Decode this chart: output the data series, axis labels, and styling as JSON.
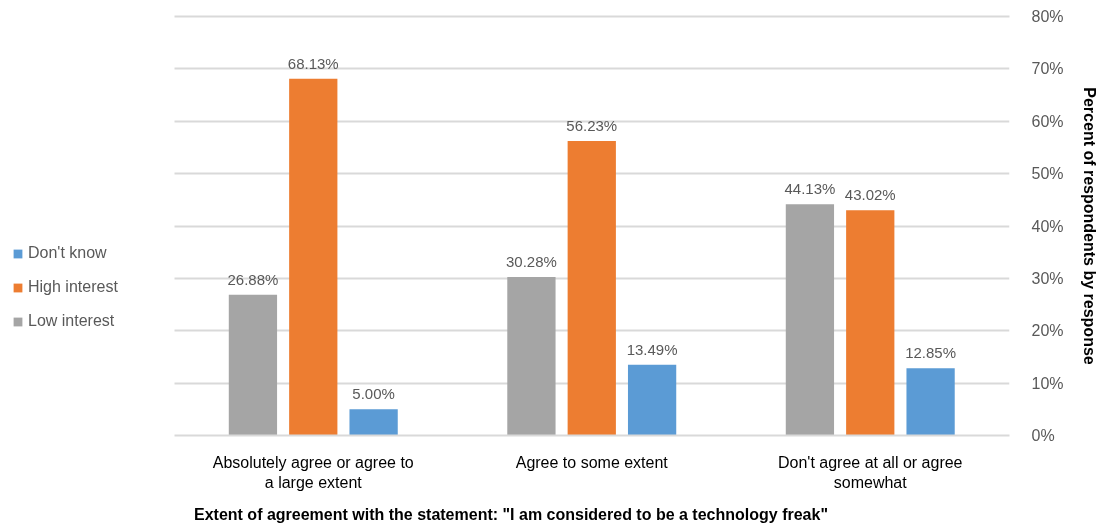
{
  "chart_data": {
    "type": "bar",
    "categories": [
      "Absolutely agree or agree to a large extent",
      "Agree to some extent",
      "Don't agree at all or agree somewhat"
    ],
    "series": [
      {
        "name": "Low interest",
        "color": "#a5a5a5",
        "values": [
          26.88,
          30.28,
          44.13
        ],
        "value_labels": [
          "26.88%",
          "30.28%",
          "44.13%"
        ]
      },
      {
        "name": "High interest",
        "color": "#ed7d31",
        "values": [
          68.13,
          56.23,
          43.02
        ],
        "value_labels": [
          "68.13%",
          "56.23%",
          "43.02%"
        ]
      },
      {
        "name": "Don't know",
        "color": "#5b9bd5",
        "values": [
          5.0,
          13.49,
          12.85
        ],
        "value_labels": [
          "5.00%",
          "13.49%",
          "12.85%"
        ]
      }
    ],
    "xlabel": "Extent of agreement with the statement: \"I am considered to be a technology freak\"",
    "ylabel": "Percent of respondents by response",
    "ylim": [
      0,
      80
    ],
    "yticks": [
      {
        "value": 0,
        "label": "0%"
      },
      {
        "value": 10,
        "label": "10%"
      },
      {
        "value": 20,
        "label": "20%"
      },
      {
        "value": 30,
        "label": "30%"
      },
      {
        "value": 40,
        "label": "40%"
      },
      {
        "value": 50,
        "label": "50%"
      },
      {
        "value": 60,
        "label": "60%"
      },
      {
        "value": 70,
        "label": "70%"
      },
      {
        "value": 80,
        "label": "80%"
      }
    ],
    "grid": "y",
    "legend": "left"
  }
}
